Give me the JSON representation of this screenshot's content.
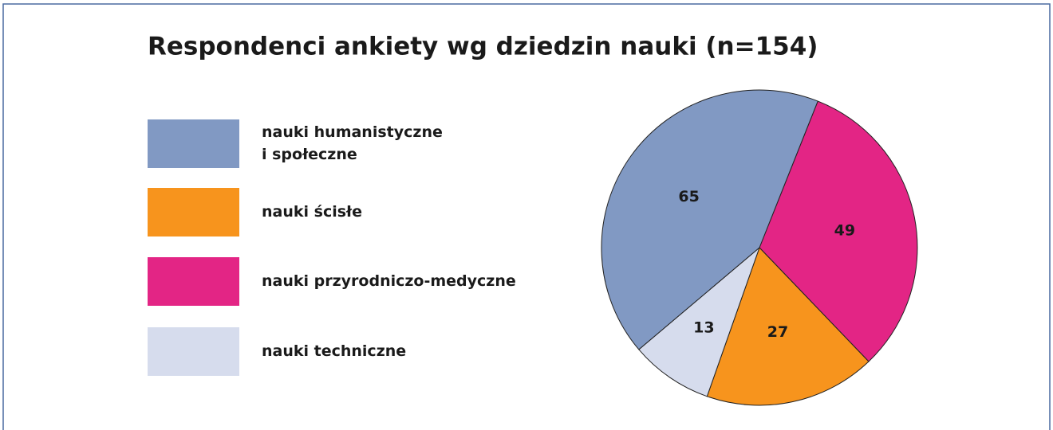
{
  "chart_data": {
    "type": "pie",
    "title": "Respondenci ankiety wg dziedzin nauki (n=154)",
    "series": [
      {
        "name": "nauki humanistyczne\ni społeczne",
        "color": "#8199c3",
        "values": [
          65
        ]
      },
      {
        "name": "nauki ścisłe",
        "color": "#f7941d",
        "values": [
          27
        ]
      },
      {
        "name": "nauki przyrodniczo-medyczne",
        "color": "#e32585",
        "values": [
          49
        ]
      },
      {
        "name": "nauki techniczne",
        "color": "#d6dced",
        "values": [
          13
        ]
      }
    ],
    "legend": "left"
  }
}
